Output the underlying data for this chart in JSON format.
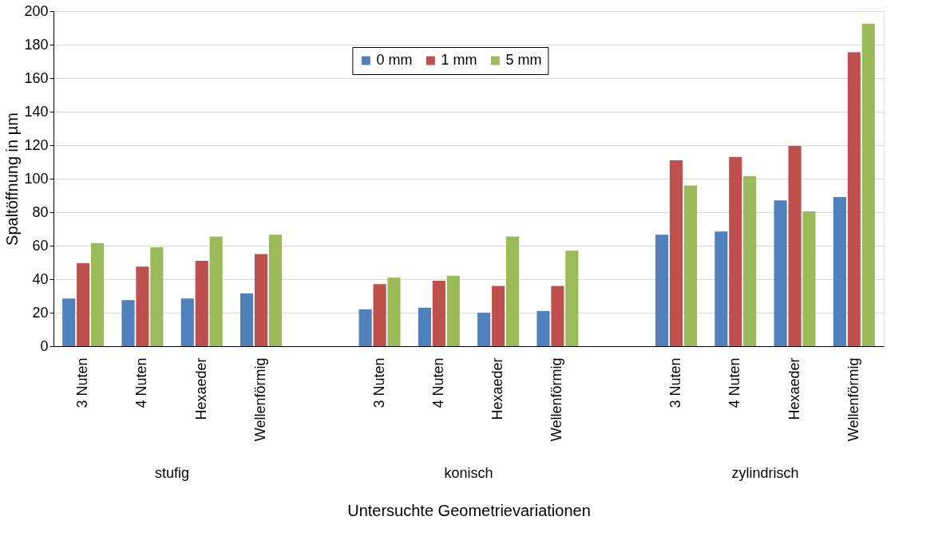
{
  "chart_data": {
    "type": "bar",
    "xlabel": "Untersuchte Geometrievariationen",
    "ylabel": "Spaltöffnung in µm",
    "categories": [
      "3 Nuten",
      "4 Nuten",
      "Hexaeder",
      "Wellenförmig",
      null,
      "3 Nuten",
      "4 Nuten",
      "Hexaeder",
      "Wellenförmig",
      null,
      "3 Nuten",
      "4 Nuten",
      "Hexaeder",
      "Wellenförmig"
    ],
    "series": [
      {
        "name": "0 mm",
        "color": "#4f81bd",
        "values": [
          28.5,
          27.5,
          28.5,
          31.5,
          null,
          22,
          23,
          20,
          21,
          null,
          66.5,
          68.5,
          87,
          89
        ]
      },
      {
        "name": "1 mm",
        "color": "#c0504d",
        "values": [
          49.5,
          47.5,
          51,
          55,
          null,
          37,
          39,
          36,
          36,
          null,
          111,
          113,
          119.5,
          175.5
        ]
      },
      {
        "name": "5 mm",
        "color": "#9bbb59",
        "values": [
          61.5,
          59,
          65.5,
          66.5,
          null,
          41,
          42,
          65.5,
          57,
          null,
          96,
          101.5,
          80.5,
          192.5
        ]
      }
    ],
    "ylim": [
      0,
      200
    ],
    "yticks": [
      0,
      20,
      40,
      60,
      80,
      100,
      120,
      140,
      160,
      180,
      200
    ],
    "grid": "y",
    "legend": "top",
    "annotations": [
      "stufig",
      "konisch",
      "zylindrisch"
    ]
  }
}
